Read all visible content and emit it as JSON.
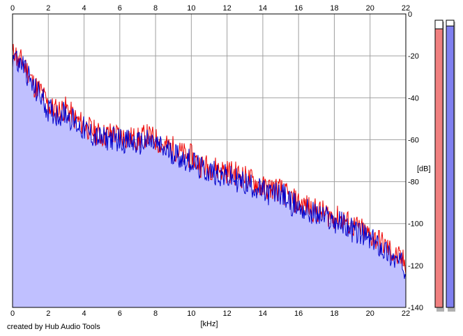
{
  "chart_data": {
    "type": "line",
    "title": "",
    "xlabel": "[kHz]",
    "ylabel": "[dB]",
    "xlim": [
      0,
      22
    ],
    "ylim": [
      -140,
      0
    ],
    "x_ticks": [
      "0",
      "2",
      "4",
      "6",
      "8",
      "10",
      "12",
      "14",
      "16",
      "18",
      "20",
      "22"
    ],
    "y_ticks": [
      "0",
      "-20",
      "-40",
      "-60",
      "-80",
      "-100",
      "-120",
      "-140"
    ],
    "grid": true,
    "x_axis_position": "top and bottom",
    "y_axis_position": "right",
    "colors": {
      "fill": "#c0c0ff",
      "series_red": "#ee0000",
      "series_blue": "#0000cc",
      "grid": "#a0a0a0"
    },
    "series": [
      {
        "color": "red",
        "x": [
          0,
          0.15,
          0.3,
          0.5,
          0.7,
          0.9,
          1.2,
          1.6,
          2,
          2.5,
          3,
          3.5,
          4,
          4.5,
          5,
          5.5,
          6,
          6.5,
          7,
          7.5,
          8,
          8.5,
          9,
          9.5,
          10,
          10.5,
          11,
          11.5,
          12,
          12.5,
          13,
          13.5,
          14,
          14.5,
          15,
          15.5,
          16,
          16.5,
          17,
          17.5,
          18,
          18.5,
          19,
          19.5,
          20,
          20.5,
          21,
          21.5,
          22
        ],
        "values": [
          -20,
          -17,
          -24,
          -22,
          -25,
          -28,
          -34,
          -37,
          -44,
          -46,
          -45,
          -50,
          -53,
          -56,
          -58,
          -57,
          -58,
          -59,
          -60,
          -58,
          -60,
          -63,
          -64,
          -67,
          -68,
          -72,
          -73,
          -74,
          -75,
          -76,
          -78,
          -80,
          -83,
          -83,
          -84,
          -88,
          -90,
          -92,
          -94,
          -95,
          -97,
          -98,
          -101,
          -103,
          -106,
          -108,
          -112,
          -116,
          -119
        ]
      },
      {
        "color": "blue",
        "x": [
          0,
          0.15,
          0.3,
          0.5,
          0.7,
          0.9,
          1.2,
          1.6,
          2,
          2.5,
          3,
          3.5,
          4,
          4.5,
          5,
          5.5,
          6,
          6.5,
          7,
          7.5,
          8,
          8.5,
          9,
          9.5,
          10,
          10.5,
          11,
          11.5,
          12,
          12.5,
          13,
          13.5,
          14,
          14.5,
          15,
          15.5,
          16,
          16.5,
          17,
          17.5,
          18,
          18.5,
          19,
          19.5,
          20,
          20.5,
          21,
          21.5,
          22
        ],
        "values": [
          -22,
          -18,
          -25,
          -23,
          -26,
          -30,
          -36,
          -39,
          -46,
          -48,
          -47,
          -52,
          -55,
          -58,
          -60,
          -59,
          -60,
          -61,
          -62,
          -61,
          -62,
          -65,
          -66,
          -69,
          -70,
          -74,
          -75,
          -76,
          -78,
          -79,
          -81,
          -82,
          -85,
          -86,
          -85,
          -90,
          -92,
          -94,
          -96,
          -97,
          -99,
          -100,
          -103,
          -105,
          -108,
          -110,
          -114,
          -118,
          -121
        ]
      }
    ]
  },
  "level_meters": [
    {
      "color": "#f08080",
      "level": 0.97
    },
    {
      "color": "#8080f0",
      "level": 0.98
    }
  ],
  "footer": {
    "credit": "created by Hub Audio Tools"
  }
}
